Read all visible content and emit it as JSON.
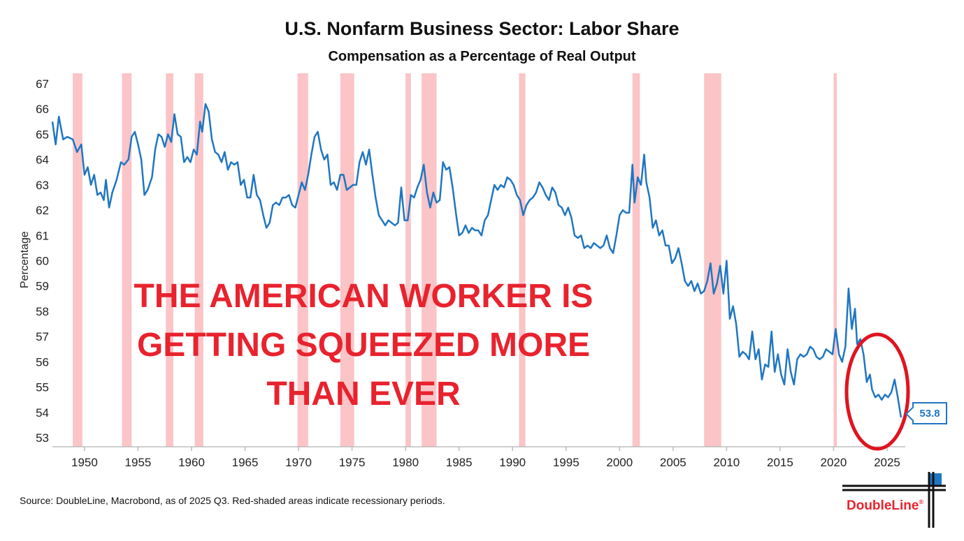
{
  "chart_data": {
    "type": "line",
    "title": "U.S. Nonfarm Business Sector: Labor Share",
    "subtitle": "Compensation as a Percentage of Real Output",
    "ylabel": "Percentage",
    "xlabel": "",
    "ylim": [
      53,
      67
    ],
    "xlim": [
      1947,
      2026.7
    ],
    "yticks": [
      53,
      54,
      55,
      56,
      57,
      58,
      59,
      60,
      61,
      62,
      63,
      64,
      65,
      66,
      67
    ],
    "xticks": [
      1950,
      1955,
      1960,
      1965,
      1970,
      1975,
      1980,
      1985,
      1990,
      1995,
      2000,
      2005,
      2010,
      2015,
      2020,
      2025
    ],
    "grid": false,
    "line_color": "#1f76c2",
    "recession_color": "#fbc4c7",
    "recessions": [
      [
        1948.9,
        1949.8
      ],
      [
        1953.5,
        1954.4
      ],
      [
        1957.6,
        1958.3
      ],
      [
        1960.3,
        1961.1
      ],
      [
        1969.9,
        1970.9
      ],
      [
        1973.9,
        1975.2
      ],
      [
        1980.0,
        1980.5
      ],
      [
        1981.5,
        1982.9
      ],
      [
        1990.6,
        1991.2
      ],
      [
        2001.2,
        2001.9
      ],
      [
        2007.9,
        2009.5
      ],
      [
        2020.0,
        2020.3
      ]
    ],
    "series": [
      {
        "values": [
          [
            1947.0,
            65.5
          ],
          [
            1947.3,
            64.6
          ],
          [
            1947.6,
            65.7
          ],
          [
            1948.0,
            64.8
          ],
          [
            1948.4,
            64.9
          ],
          [
            1948.9,
            64.8
          ],
          [
            1949.3,
            64.3
          ],
          [
            1949.7,
            64.6
          ],
          [
            1950.0,
            63.4
          ],
          [
            1950.3,
            63.7
          ],
          [
            1950.6,
            63.0
          ],
          [
            1950.9,
            63.4
          ],
          [
            1951.2,
            62.6
          ],
          [
            1951.5,
            62.7
          ],
          [
            1951.8,
            62.4
          ],
          [
            1952.0,
            63.2
          ],
          [
            1952.3,
            62.1
          ],
          [
            1952.6,
            62.7
          ],
          [
            1953.0,
            63.2
          ],
          [
            1953.4,
            63.9
          ],
          [
            1953.7,
            63.8
          ],
          [
            1954.1,
            64.0
          ],
          [
            1954.4,
            64.9
          ],
          [
            1954.7,
            65.1
          ],
          [
            1955.0,
            64.6
          ],
          [
            1955.3,
            64.0
          ],
          [
            1955.6,
            62.6
          ],
          [
            1955.9,
            62.8
          ],
          [
            1956.3,
            63.3
          ],
          [
            1956.6,
            64.4
          ],
          [
            1956.9,
            65.0
          ],
          [
            1957.2,
            64.9
          ],
          [
            1957.5,
            64.5
          ],
          [
            1957.8,
            65.0
          ],
          [
            1958.1,
            64.7
          ],
          [
            1958.4,
            65.8
          ],
          [
            1958.7,
            65.0
          ],
          [
            1959.0,
            64.9
          ],
          [
            1959.3,
            63.9
          ],
          [
            1959.6,
            64.1
          ],
          [
            1959.9,
            63.9
          ],
          [
            1960.2,
            64.4
          ],
          [
            1960.5,
            64.2
          ],
          [
            1960.8,
            65.5
          ],
          [
            1961.0,
            65.1
          ],
          [
            1961.3,
            66.2
          ],
          [
            1961.6,
            65.9
          ],
          [
            1961.9,
            64.8
          ],
          [
            1962.2,
            64.3
          ],
          [
            1962.5,
            64.2
          ],
          [
            1962.8,
            63.9
          ],
          [
            1963.1,
            64.3
          ],
          [
            1963.4,
            63.6
          ],
          [
            1963.7,
            63.9
          ],
          [
            1964.0,
            63.8
          ],
          [
            1964.3,
            63.9
          ],
          [
            1964.6,
            63.0
          ],
          [
            1964.9,
            63.2
          ],
          [
            1965.2,
            62.5
          ],
          [
            1965.5,
            62.5
          ],
          [
            1965.8,
            63.4
          ],
          [
            1966.1,
            62.6
          ],
          [
            1966.4,
            62.4
          ],
          [
            1966.7,
            61.8
          ],
          [
            1967.0,
            61.3
          ],
          [
            1967.3,
            61.5
          ],
          [
            1967.6,
            62.2
          ],
          [
            1967.9,
            62.3
          ],
          [
            1968.2,
            62.2
          ],
          [
            1968.5,
            62.5
          ],
          [
            1968.8,
            62.5
          ],
          [
            1969.1,
            62.6
          ],
          [
            1969.4,
            62.2
          ],
          [
            1969.7,
            62.1
          ],
          [
            1970.0,
            62.6
          ],
          [
            1970.3,
            63.1
          ],
          [
            1970.6,
            62.8
          ],
          [
            1970.9,
            63.4
          ],
          [
            1971.2,
            64.2
          ],
          [
            1971.5,
            64.9
          ],
          [
            1971.8,
            65.1
          ],
          [
            1972.1,
            64.4
          ],
          [
            1972.4,
            64.0
          ],
          [
            1972.7,
            64.2
          ],
          [
            1973.0,
            63.0
          ],
          [
            1973.3,
            63.1
          ],
          [
            1973.6,
            62.8
          ],
          [
            1973.9,
            63.4
          ],
          [
            1974.2,
            63.4
          ],
          [
            1974.5,
            62.8
          ],
          [
            1974.8,
            62.9
          ],
          [
            1975.1,
            63.0
          ],
          [
            1975.4,
            63.0
          ],
          [
            1975.7,
            63.9
          ],
          [
            1976.0,
            64.3
          ],
          [
            1976.3,
            63.8
          ],
          [
            1976.6,
            64.4
          ],
          [
            1976.9,
            63.4
          ],
          [
            1977.2,
            62.5
          ],
          [
            1977.5,
            61.8
          ],
          [
            1977.8,
            61.6
          ],
          [
            1978.1,
            61.4
          ],
          [
            1978.4,
            61.6
          ],
          [
            1978.7,
            61.5
          ],
          [
            1979.0,
            61.4
          ],
          [
            1979.3,
            61.5
          ],
          [
            1979.6,
            62.9
          ],
          [
            1979.9,
            61.6
          ],
          [
            1980.2,
            61.6
          ],
          [
            1980.5,
            62.6
          ],
          [
            1980.8,
            62.5
          ],
          [
            1981.1,
            62.9
          ],
          [
            1981.4,
            63.2
          ],
          [
            1981.7,
            63.8
          ],
          [
            1982.0,
            62.7
          ],
          [
            1982.3,
            62.1
          ],
          [
            1982.6,
            62.7
          ],
          [
            1982.9,
            62.3
          ],
          [
            1983.2,
            62.4
          ],
          [
            1983.5,
            63.9
          ],
          [
            1983.8,
            63.6
          ],
          [
            1984.1,
            63.7
          ],
          [
            1984.4,
            62.9
          ],
          [
            1984.7,
            61.9
          ],
          [
            1985.0,
            61.0
          ],
          [
            1985.3,
            61.1
          ],
          [
            1985.6,
            61.4
          ],
          [
            1985.9,
            61.1
          ],
          [
            1986.2,
            61.3
          ],
          [
            1986.5,
            61.2
          ],
          [
            1986.8,
            61.2
          ],
          [
            1987.1,
            61.0
          ],
          [
            1987.4,
            61.6
          ],
          [
            1987.7,
            61.8
          ],
          [
            1988.0,
            62.4
          ],
          [
            1988.3,
            63.0
          ],
          [
            1988.6,
            62.8
          ],
          [
            1988.9,
            63.0
          ],
          [
            1989.2,
            62.9
          ],
          [
            1989.5,
            63.3
          ],
          [
            1989.8,
            63.2
          ],
          [
            1990.1,
            63.0
          ],
          [
            1990.4,
            62.6
          ],
          [
            1990.7,
            62.4
          ],
          [
            1991.0,
            61.8
          ],
          [
            1991.3,
            62.2
          ],
          [
            1991.6,
            62.4
          ],
          [
            1991.9,
            62.5
          ],
          [
            1992.2,
            62.7
          ],
          [
            1992.5,
            63.1
          ],
          [
            1992.8,
            62.9
          ],
          [
            1993.1,
            62.6
          ],
          [
            1993.4,
            62.4
          ],
          [
            1993.7,
            62.9
          ],
          [
            1994.0,
            62.7
          ],
          [
            1994.3,
            62.2
          ],
          [
            1994.6,
            62.1
          ],
          [
            1994.9,
            61.8
          ],
          [
            1995.2,
            62.1
          ],
          [
            1995.5,
            61.7
          ],
          [
            1995.8,
            61.0
          ],
          [
            1996.1,
            60.9
          ],
          [
            1996.4,
            61.0
          ],
          [
            1996.7,
            60.5
          ],
          [
            1997.0,
            60.6
          ],
          [
            1997.3,
            60.5
          ],
          [
            1997.6,
            60.7
          ],
          [
            1997.9,
            60.6
          ],
          [
            1998.2,
            60.5
          ],
          [
            1998.5,
            60.6
          ],
          [
            1998.8,
            61.0
          ],
          [
            1999.1,
            60.5
          ],
          [
            1999.4,
            60.3
          ],
          [
            1999.7,
            61.0
          ],
          [
            2000.0,
            61.8
          ],
          [
            2000.3,
            62.0
          ],
          [
            2000.6,
            61.9
          ],
          [
            2000.9,
            61.9
          ],
          [
            2001.2,
            63.8
          ],
          [
            2001.4,
            62.3
          ],
          [
            2001.7,
            63.3
          ],
          [
            2002.0,
            63.0
          ],
          [
            2002.3,
            64.2
          ],
          [
            2002.5,
            63.1
          ],
          [
            2002.8,
            62.5
          ],
          [
            2003.1,
            61.3
          ],
          [
            2003.4,
            61.6
          ],
          [
            2003.7,
            61.0
          ],
          [
            2004.0,
            61.2
          ],
          [
            2004.3,
            60.6
          ],
          [
            2004.6,
            60.6
          ],
          [
            2004.9,
            59.9
          ],
          [
            2005.2,
            60.1
          ],
          [
            2005.5,
            60.5
          ],
          [
            2005.8,
            59.9
          ],
          [
            2006.1,
            59.2
          ],
          [
            2006.4,
            59.0
          ],
          [
            2006.7,
            59.2
          ],
          [
            2007.0,
            58.8
          ],
          [
            2007.3,
            59.1
          ],
          [
            2007.6,
            58.7
          ],
          [
            2007.9,
            58.8
          ],
          [
            2008.2,
            59.2
          ],
          [
            2008.5,
            59.9
          ],
          [
            2008.8,
            58.7
          ],
          [
            2009.1,
            59.1
          ],
          [
            2009.4,
            59.8
          ],
          [
            2009.7,
            58.7
          ],
          [
            2010.0,
            60.0
          ],
          [
            2010.3,
            57.7
          ],
          [
            2010.6,
            58.2
          ],
          [
            2010.9,
            57.5
          ],
          [
            2011.2,
            56.2
          ],
          [
            2011.5,
            56.4
          ],
          [
            2011.8,
            56.3
          ],
          [
            2012.1,
            56.1
          ],
          [
            2012.4,
            57.2
          ],
          [
            2012.7,
            56.1
          ],
          [
            2013.0,
            56.5
          ],
          [
            2013.3,
            55.3
          ],
          [
            2013.6,
            55.9
          ],
          [
            2013.9,
            55.8
          ],
          [
            2014.2,
            57.2
          ],
          [
            2014.5,
            55.6
          ],
          [
            2014.8,
            56.3
          ],
          [
            2015.1,
            55.5
          ],
          [
            2015.4,
            55.1
          ],
          [
            2015.7,
            56.5
          ],
          [
            2016.0,
            55.6
          ],
          [
            2016.3,
            55.1
          ],
          [
            2016.6,
            56.1
          ],
          [
            2016.9,
            56.3
          ],
          [
            2017.2,
            56.2
          ],
          [
            2017.5,
            56.3
          ],
          [
            2017.8,
            56.6
          ],
          [
            2018.1,
            56.5
          ],
          [
            2018.4,
            56.2
          ],
          [
            2018.7,
            56.1
          ],
          [
            2019.0,
            56.2
          ],
          [
            2019.3,
            56.5
          ],
          [
            2019.6,
            56.4
          ],
          [
            2019.9,
            56.3
          ],
          [
            2020.2,
            57.3
          ],
          [
            2020.5,
            56.3
          ],
          [
            2020.8,
            56.0
          ],
          [
            2021.1,
            56.6
          ],
          [
            2021.4,
            58.9
          ],
          [
            2021.7,
            57.3
          ],
          [
            2022.0,
            58.1
          ],
          [
            2022.2,
            56.7
          ],
          [
            2022.5,
            56.9
          ],
          [
            2022.8,
            56.3
          ],
          [
            2023.1,
            55.2
          ],
          [
            2023.4,
            55.5
          ],
          [
            2023.6,
            54.9
          ],
          [
            2023.9,
            54.6
          ],
          [
            2024.2,
            54.7
          ],
          [
            2024.5,
            54.5
          ],
          [
            2024.8,
            54.7
          ],
          [
            2025.1,
            54.6
          ],
          [
            2025.4,
            54.8
          ],
          [
            2025.7,
            55.3
          ],
          [
            2026.0,
            54.6
          ],
          [
            2026.3,
            53.8
          ]
        ]
      }
    ],
    "annotation_text": "THE AMERICAN WORKER IS GETTING SQUEEZED MORE THAN EVER",
    "annotation_color": "#e8232e",
    "last_value_label": "53.8"
  },
  "source": "Source: DoubleLine, Macrobond, as of 2025 Q3. Red-shaded areas indicate recessionary periods.",
  "logo": {
    "text": "DoubleLine",
    "reg": "®",
    "accent": "#1f76c2"
  }
}
